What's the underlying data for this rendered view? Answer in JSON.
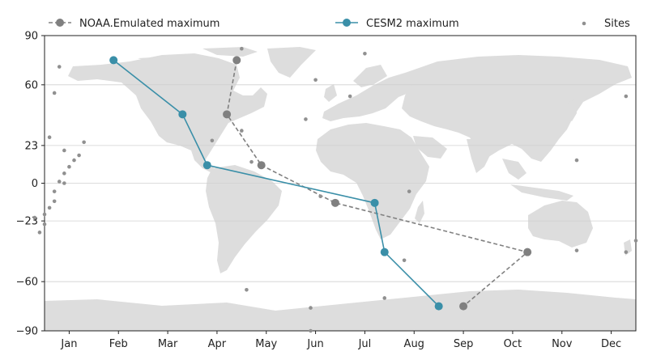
{
  "chart_data": {
    "type": "scatter",
    "title": "",
    "xlabel": "",
    "ylabel": "",
    "xlim": [
      0.5,
      12.5
    ],
    "ylim": [
      -90,
      90
    ],
    "x_ticks": [
      {
        "value": 1,
        "label": "Jan"
      },
      {
        "value": 2,
        "label": "Feb"
      },
      {
        "value": 3,
        "label": "Mar"
      },
      {
        "value": 4,
        "label": "Apr"
      },
      {
        "value": 5,
        "label": "May"
      },
      {
        "value": 6,
        "label": "Jun"
      },
      {
        "value": 7,
        "label": "Jul"
      },
      {
        "value": 8,
        "label": "Aug"
      },
      {
        "value": 9,
        "label": "Sep"
      },
      {
        "value": 10,
        "label": "Oct"
      },
      {
        "value": 11,
        "label": "Nov"
      },
      {
        "value": 12,
        "label": "Dec"
      }
    ],
    "y_ticks": [
      90,
      60,
      23,
      0,
      -23,
      -60,
      -90
    ],
    "grid": "horizontal",
    "background": "world map (land in light gray)",
    "legend_position": "top",
    "series": [
      {
        "name": "NOAA.Emulated maximum",
        "color": "#808080",
        "line_style": "dashed",
        "marker": "circle",
        "points": [
          {
            "x": 4.4,
            "y": 75
          },
          {
            "x": 4.2,
            "y": 42
          },
          {
            "x": 4.9,
            "y": 11
          },
          {
            "x": 6.4,
            "y": -12
          },
          {
            "x": 10.3,
            "y": -42
          },
          {
            "x": 9.0,
            "y": -75
          }
        ]
      },
      {
        "name": "CESM2 maximum",
        "color": "#3a8fa8",
        "line_style": "solid",
        "marker": "circle",
        "points": [
          {
            "x": 1.9,
            "y": 75
          },
          {
            "x": 3.3,
            "y": 42
          },
          {
            "x": 3.8,
            "y": 11
          },
          {
            "x": 7.2,
            "y": -12
          },
          {
            "x": 7.4,
            "y": -42
          },
          {
            "x": 8.5,
            "y": -75
          }
        ]
      },
      {
        "name": "Sites",
        "color": "#909090",
        "line_style": "none",
        "marker": "small-circle",
        "points": [
          {
            "x": 4.5,
            "y": 82
          },
          {
            "x": 7.0,
            "y": 79
          },
          {
            "x": 0.8,
            "y": 71
          },
          {
            "x": 0.7,
            "y": 55
          },
          {
            "x": 6.0,
            "y": 63
          },
          {
            "x": 6.7,
            "y": 53
          },
          {
            "x": 12.3,
            "y": 53
          },
          {
            "x": 5.8,
            "y": 39
          },
          {
            "x": 4.5,
            "y": 32
          },
          {
            "x": 0.6,
            "y": 28
          },
          {
            "x": 3.9,
            "y": 26
          },
          {
            "x": 1.3,
            "y": 25
          },
          {
            "x": 0.9,
            "y": 20
          },
          {
            "x": 1.2,
            "y": 17
          },
          {
            "x": 1.1,
            "y": 14
          },
          {
            "x": 4.7,
            "y": 13
          },
          {
            "x": 1.0,
            "y": 10
          },
          {
            "x": 11.3,
            "y": 14
          },
          {
            "x": 0.9,
            "y": 6
          },
          {
            "x": 0.8,
            "y": 1
          },
          {
            "x": 0.9,
            "y": 0
          },
          {
            "x": 0.7,
            "y": -5
          },
          {
            "x": 0.7,
            "y": -11
          },
          {
            "x": 0.6,
            "y": -15
          },
          {
            "x": 0.5,
            "y": -19
          },
          {
            "x": 0.3,
            "y": -21
          },
          {
            "x": 0.5,
            "y": -25
          },
          {
            "x": 0.4,
            "y": -30
          },
          {
            "x": 6.1,
            "y": -8
          },
          {
            "x": 7.9,
            "y": -5
          },
          {
            "x": 11.3,
            "y": -41
          },
          {
            "x": 12.3,
            "y": -42
          },
          {
            "x": 12.5,
            "y": -35
          },
          {
            "x": 7.8,
            "y": -47
          },
          {
            "x": 4.6,
            "y": -65
          },
          {
            "x": 7.4,
            "y": -70
          },
          {
            "x": 5.9,
            "y": -76
          },
          {
            "x": 5.9,
            "y": -90
          }
        ]
      }
    ]
  }
}
